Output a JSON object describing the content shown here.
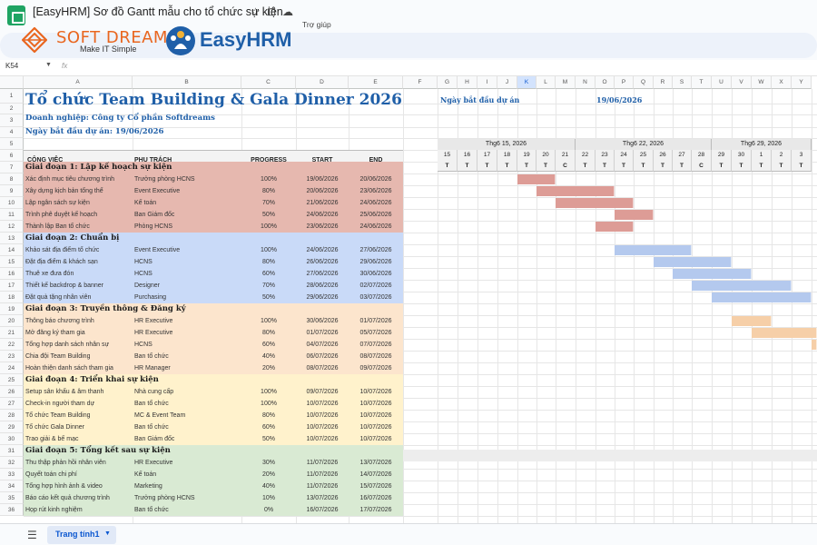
{
  "window": {
    "title": "[EasyHRM] Sơ đồ Gantt mẫu cho tổ chức sự kiện",
    "menu_help": "Trợ giúp",
    "icons": [
      "star-icon",
      "move-icon",
      "cloud-icon"
    ]
  },
  "logos": {
    "softdreams_name": "SOFT DREAMS",
    "softdreams_tagline": "Make IT Simple",
    "easyhrm_name": "EasyHRM"
  },
  "formula_bar": {
    "cell_ref": "K54",
    "fx": "fx"
  },
  "columns": [
    "A",
    "B",
    "C",
    "D",
    "E",
    "F",
    "G",
    "H",
    "I",
    "J",
    "K",
    "L",
    "M",
    "N",
    "O",
    "P",
    "Q",
    "R",
    "S",
    "T",
    "U",
    "V",
    "W",
    "X",
    "Y"
  ],
  "selected_column": "K",
  "row_numbers": [
    1,
    2,
    3,
    4,
    5,
    6,
    7,
    8,
    9,
    10,
    11,
    12,
    13,
    14,
    15,
    16,
    17,
    18,
    19,
    20,
    21,
    22,
    23,
    24,
    25,
    26,
    27,
    28,
    29,
    30,
    31,
    32,
    33,
    34,
    35,
    36
  ],
  "sheet": {
    "title": "Tổ chức Team Building & Gala Dinner 2026",
    "company": "Doanh nghiệp: Công ty Cổ phần Softdreams",
    "start_date_line": "Ngày bắt đầu dự án: 19/06/2026",
    "gantt_start_label": "Ngày bắt đầu dự án",
    "gantt_start_value": "19/06/2026",
    "headers": {
      "task": "CÔNG VIỆC",
      "owner": "PHỤ TRÁCH",
      "progress": "PROGRESS",
      "start": "START",
      "end": "END"
    }
  },
  "timeline": {
    "weeks": [
      "Thg6 15, 2026",
      "Thg6 22, 2026",
      "Thg6 29, 2026"
    ],
    "days": [
      "15",
      "16",
      "17",
      "18",
      "19",
      "20",
      "21",
      "22",
      "23",
      "24",
      "25",
      "26",
      "27",
      "28",
      "29",
      "30",
      "1",
      "2",
      "3"
    ],
    "weekdays": [
      "T",
      "T",
      "T",
      "T",
      "T",
      "T",
      "C",
      "T",
      "T",
      "T",
      "T",
      "T",
      "T",
      "C",
      "T",
      "T",
      "T",
      "T",
      "T"
    ]
  },
  "phases": [
    {
      "title": "Giai đoạn 1: Lập kế hoạch sự kiện",
      "color": "#e6b8af",
      "bar_color": "#dd9c96",
      "tasks": [
        {
          "name": "Xác định mục tiêu chương trình",
          "owner": "Trưởng phòng HCNS",
          "progress": "100%",
          "start": "19/06/2026",
          "end": "20/06/2026"
        },
        {
          "name": "Xây dựng kịch bản tổng thể",
          "owner": "Event Executive",
          "progress": "80%",
          "start": "20/06/2026",
          "end": "23/06/2026"
        },
        {
          "name": "Lập ngân sách sự kiện",
          "owner": "Kế toán",
          "progress": "70%",
          "start": "21/06/2026",
          "end": "24/06/2026"
        },
        {
          "name": "Trình phê duyệt kế hoạch",
          "owner": "Ban Giám đốc",
          "progress": "50%",
          "start": "24/06/2026",
          "end": "25/06/2026"
        },
        {
          "name": "Thành lập Ban tổ chức",
          "owner": "Phòng HCNS",
          "progress": "100%",
          "start": "23/06/2026",
          "end": "24/06/2026"
        }
      ]
    },
    {
      "title": "Giai đoạn 2: Chuẩn bị",
      "color": "#c9daf8",
      "bar_color": "#b4c9ee",
      "tasks": [
        {
          "name": "Khảo sát địa điểm tổ chức",
          "owner": "Event Executive",
          "progress": "100%",
          "start": "24/06/2026",
          "end": "27/06/2026"
        },
        {
          "name": "Đặt địa điểm & khách sạn",
          "owner": "HCNS",
          "progress": "80%",
          "start": "26/06/2026",
          "end": "29/06/2026"
        },
        {
          "name": "Thuê xe đưa đón",
          "owner": "HCNS",
          "progress": "60%",
          "start": "27/06/2026",
          "end": "30/06/2026"
        },
        {
          "name": "Thiết kế backdrop & banner",
          "owner": "Designer",
          "progress": "70%",
          "start": "28/06/2026",
          "end": "02/07/2026"
        },
        {
          "name": "Đặt quà tặng nhân viên",
          "owner": "Purchasing",
          "progress": "50%",
          "start": "29/06/2026",
          "end": "03/07/2026"
        }
      ]
    },
    {
      "title": "Giai đoạn 3: Truyền thông & Đăng ký",
      "color": "#fce5cd",
      "bar_color": "#f6cfa8",
      "tasks": [
        {
          "name": "Thông báo chương trình",
          "owner": "HR Executive",
          "progress": "100%",
          "start": "30/06/2026",
          "end": "01/07/2026"
        },
        {
          "name": "Mở đăng ký tham gia",
          "owner": "HR Executive",
          "progress": "80%",
          "start": "01/07/2026",
          "end": "05/07/2026"
        },
        {
          "name": "Tổng hợp danh sách nhân sự",
          "owner": "HCNS",
          "progress": "60%",
          "start": "04/07/2026",
          "end": "07/07/2026"
        },
        {
          "name": "Chia đội Team Building",
          "owner": "Ban tổ chức",
          "progress": "40%",
          "start": "06/07/2026",
          "end": "08/07/2026"
        },
        {
          "name": "Hoàn thiện danh sách tham gia",
          "owner": "HR Manager",
          "progress": "20%",
          "start": "08/07/2026",
          "end": "09/07/2026"
        }
      ]
    },
    {
      "title": "Giai đoạn 4: Triển khai sự kiện",
      "color": "#fff2cc",
      "bar_color": "#ffe08a",
      "tasks": [
        {
          "name": "Setup sân khấu & âm thanh",
          "owner": "Nhà cung cấp",
          "progress": "100%",
          "start": "09/07/2026",
          "end": "10/07/2026"
        },
        {
          "name": "Check-in người tham dự",
          "owner": "Ban tổ chức",
          "progress": "100%",
          "start": "10/07/2026",
          "end": "10/07/2026"
        },
        {
          "name": "Tổ chức Team Building",
          "owner": "MC & Event Team",
          "progress": "80%",
          "start": "10/07/2026",
          "end": "10/07/2026"
        },
        {
          "name": "Tổ chức Gala Dinner",
          "owner": "Ban tổ chức",
          "progress": "60%",
          "start": "10/07/2026",
          "end": "10/07/2026"
        },
        {
          "name": "Trao giải & bế mạc",
          "owner": "Ban Giám đốc",
          "progress": "50%",
          "start": "10/07/2026",
          "end": "10/07/2026"
        }
      ]
    },
    {
      "title": "Giai đoạn 5: Tổng kết sau sự kiện",
      "color": "#d9ead3",
      "bar_color": "#c4dfba",
      "tasks": [
        {
          "name": "Thu thập phản hồi nhân viên",
          "owner": "HR Executive",
          "progress": "30%",
          "start": "11/07/2026",
          "end": "13/07/2026"
        },
        {
          "name": "Quyết toán chi phí",
          "owner": "Kế toán",
          "progress": "20%",
          "start": "11/07/2026",
          "end": "14/07/2026"
        },
        {
          "name": "Tổng hợp hình ảnh & video",
          "owner": "Marketing",
          "progress": "40%",
          "start": "11/07/2026",
          "end": "15/07/2026"
        },
        {
          "name": "Báo cáo kết quả chương trình",
          "owner": "Trưởng phòng HCNS",
          "progress": "10%",
          "start": "13/07/2026",
          "end": "16/07/2026"
        },
        {
          "name": "Họp rút kinh nghiệm",
          "owner": "Ban tổ chức",
          "progress": "0%",
          "start": "16/07/2026",
          "end": "17/07/2026"
        }
      ]
    }
  ],
  "bottom": {
    "sheet_tab": "Trang tính1",
    "icons": [
      "sheets-menu-icon",
      "chevron-down-icon"
    ]
  }
}
